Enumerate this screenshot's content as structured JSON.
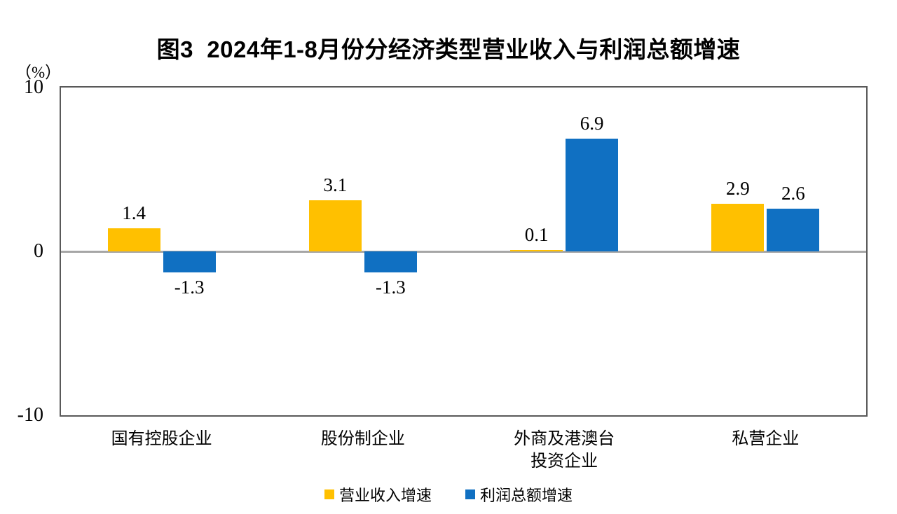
{
  "chart_data": {
    "type": "bar",
    "title": "图3  2024年1-8月份分经济类型营业收入与利润总额增速",
    "unit_label": "（%）",
    "categories": [
      "国有控股企业",
      "股份制企业",
      "外商及港澳台\n投资企业",
      "私营企业"
    ],
    "series": [
      {
        "name": "营业收入增速",
        "color": "#FFC000",
        "values": [
          1.4,
          3.1,
          0.1,
          2.9
        ]
      },
      {
        "name": "利润总额增速",
        "color": "#1070C2",
        "values": [
          -1.3,
          -1.3,
          6.9,
          2.6
        ]
      }
    ],
    "ylim": [
      -10,
      10
    ],
    "yticks": [
      10,
      0,
      -10
    ],
    "grid": false,
    "legend_position": "bottom",
    "xlabel": "",
    "ylabel": "",
    "colors": {
      "zero_line": "#A6A6A6",
      "plot_border": "#595959",
      "text": "#000000",
      "background": "#FFFFFF"
    }
  }
}
